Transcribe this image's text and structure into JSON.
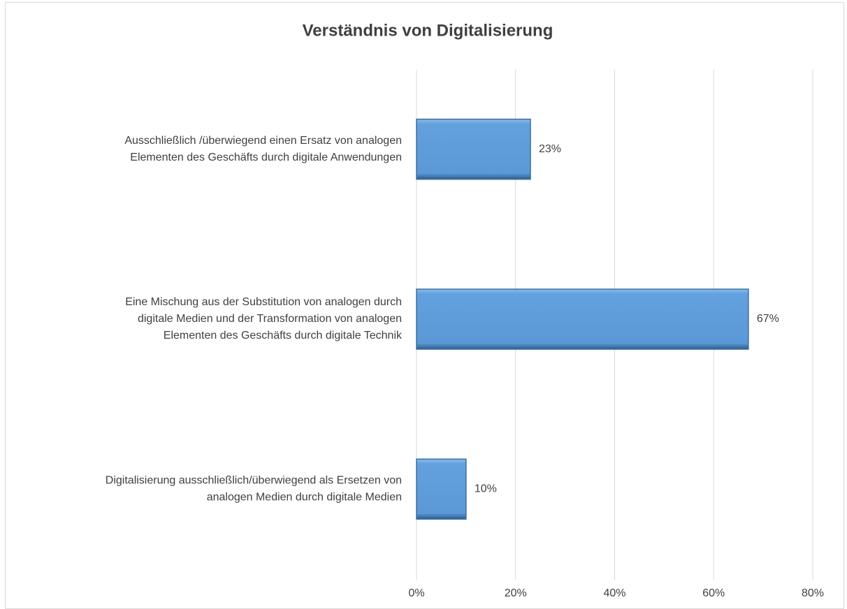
{
  "chart_data": {
    "type": "barh",
    "title": "Verständnis von Digitalisierung",
    "categories": [
      [
        "Ausschließlich /überwiegend einen Ersatz von analogen",
        "Elementen des Geschäfts durch digitale Anwendungen"
      ],
      [
        "Eine Mischung aus der Substitution von analogen durch",
        "digitale Medien und der Transformation von analogen",
        "Elementen des Geschäfts durch digitale Technik"
      ],
      [
        "Digitalisierung ausschließlich/überwiegend als Ersetzen von",
        "analogen Medien durch digitale Medien"
      ]
    ],
    "values": [
      23,
      67,
      10
    ],
    "value_labels": [
      "23%",
      "67%",
      "10%"
    ],
    "color": "#62a0de",
    "xlim": [
      0,
      80
    ],
    "xticks": [
      {
        "value": 0,
        "label": "0%"
      },
      {
        "value": 20,
        "label": "20%"
      },
      {
        "value": 40,
        "label": "40%"
      },
      {
        "value": 60,
        "label": "60%"
      },
      {
        "value": 80,
        "label": "80%"
      }
    ],
    "grid": true
  }
}
